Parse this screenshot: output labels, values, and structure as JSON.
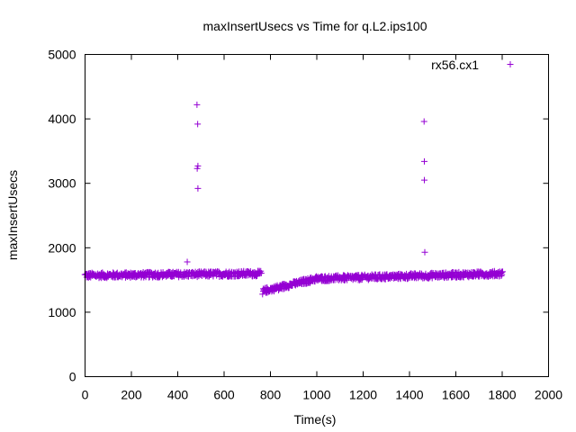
{
  "chart_data": {
    "type": "scatter",
    "title": "maxInsertUsecs vs Time for q.L2.ips100",
    "xlabel": "Time(s)",
    "ylabel": "maxInsertUsecs",
    "xlim": [
      0,
      2000
    ],
    "ylim": [
      0,
      5000
    ],
    "x_ticks": [
      "0",
      "200",
      "400",
      "600",
      "800",
      "1000",
      "1200",
      "1400",
      "1600",
      "1800",
      "2000"
    ],
    "y_ticks": [
      "0",
      "1000",
      "2000",
      "3000",
      "4000",
      "5000"
    ],
    "grid": false,
    "legend_position": "top-right",
    "marker": "+",
    "series": [
      {
        "name": "rx56.cx1",
        "color": "#9400d3",
        "bands": [
          {
            "x_start": 0,
            "x_end": 760,
            "x_step": 5,
            "y_center_start": 1570,
            "y_center_end": 1600,
            "y_spread": 60
          },
          {
            "x_start": 770,
            "x_end": 1000,
            "x_step": 5,
            "y_center_start": 1330,
            "y_center_end": 1520,
            "y_spread": 60
          },
          {
            "x_start": 1000,
            "x_end": 1800,
            "x_step": 5,
            "y_center_start": 1520,
            "y_center_end": 1600,
            "y_spread": 60
          }
        ],
        "points": [
          [
            441,
            1780
          ],
          [
            483,
            4220
          ],
          [
            486,
            3920
          ],
          [
            487,
            3270
          ],
          [
            484,
            3230
          ],
          [
            487,
            2920
          ],
          [
            1463,
            3960
          ],
          [
            1464,
            3340
          ],
          [
            1464,
            3050
          ],
          [
            1466,
            1930
          ],
          [
            766,
            1280
          ],
          [
            835,
            1340
          ]
        ]
      }
    ]
  }
}
